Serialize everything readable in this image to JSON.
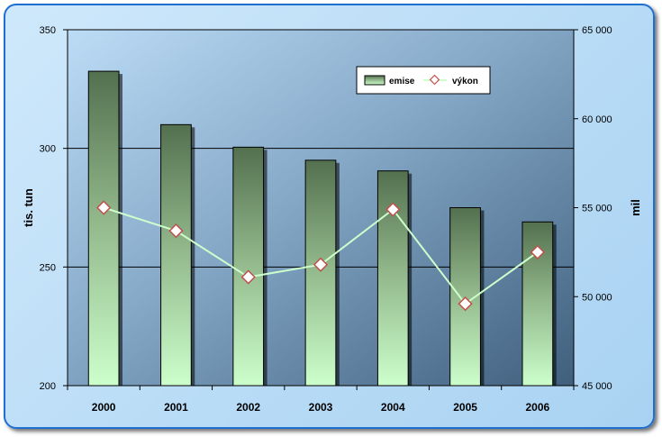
{
  "chart_data": {
    "type": "bar",
    "categories": [
      "2000",
      "2001",
      "2002",
      "2003",
      "2004",
      "2005",
      "2006"
    ],
    "series": [
      {
        "name": "emise",
        "type": "bar",
        "axis": "left",
        "values": [
          332.5,
          310,
          300.5,
          295,
          290.5,
          275,
          269
        ]
      },
      {
        "name": "výkon",
        "type": "line",
        "axis": "right",
        "values": [
          55000,
          53700,
          51100,
          51800,
          54900,
          49600,
          52500
        ]
      }
    ],
    "ylabel": "tis. tun",
    "ylabel_right": "mil",
    "ylim": [
      200,
      350
    ],
    "ylim_right": [
      45000,
      65000
    ],
    "yticks": [
      "200",
      "250",
      "300",
      "350"
    ],
    "yticks_right": [
      "45 000",
      "50 000",
      "55 000",
      "60 000",
      "65 000"
    ],
    "legend_position": "top-right",
    "grid": true,
    "colors": {
      "bar_top": "#53704f",
      "bar_bottom": "#ccffcc",
      "line": "#ccffcc",
      "marker_fill": "#ffffff",
      "marker_stroke": "#c0504d",
      "plot_top": "#bcdcf6",
      "plot_bottom": "#3f5f7d"
    }
  }
}
